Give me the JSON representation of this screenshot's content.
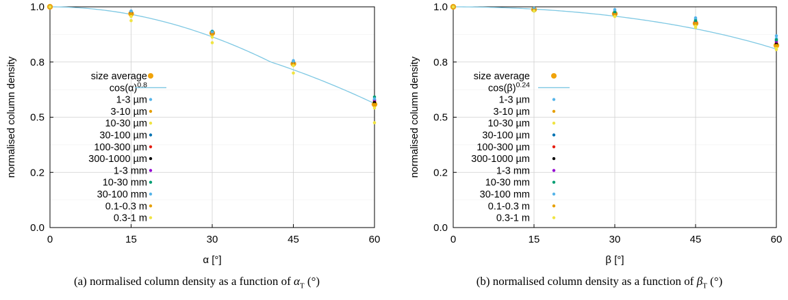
{
  "colors": {
    "fit_line": "#7ec8e3",
    "average_marker": "#f0a30a",
    "grid": "#cfcfcf",
    "axis": "#000000"
  },
  "chart_data": [
    {
      "type": "scatter",
      "xlabel": "α [°]",
      "ylabel": "normalised column density",
      "xlim": [
        0,
        60
      ],
      "ylim": [
        0,
        1
      ],
      "xticks": [
        0,
        15,
        30,
        45,
        60
      ],
      "yticks": [
        0.0,
        0.2,
        0.5,
        0.8,
        1.0
      ],
      "ytick_labels": [
        "0.0",
        "0.2",
        "0.5",
        "0.8",
        "1.0"
      ],
      "yscale": "cos-like (tick 0.5 drawn at 0.6 position)",
      "grid": true,
      "legend_position": "left-middle",
      "fit": {
        "label_base": "cos(α)",
        "label_exp": "0.8",
        "function": "cos",
        "exponent": 0.8,
        "color": "#7ec8e3"
      },
      "average": {
        "name": "size average",
        "color": "#f0a30a",
        "x": [
          0,
          15,
          30,
          45,
          60
        ],
        "y": [
          1.0,
          0.975,
          0.905,
          0.79,
          0.57
        ]
      },
      "series": [
        {
          "name": "1-3 µm",
          "color": "#56b4e9",
          "x": [
            0,
            15,
            30,
            45,
            60
          ],
          "y": [
            1.0,
            0.985,
            0.912,
            0.805,
            0.585
          ]
        },
        {
          "name": "3-10 µm",
          "color": "#e69f00",
          "x": [
            0,
            15,
            30,
            45,
            60
          ],
          "y": [
            1.0,
            0.975,
            0.905,
            0.79,
            0.57
          ]
        },
        {
          "name": "10-30 µm",
          "color": "#f0e442",
          "x": [
            0,
            15,
            30,
            45,
            60
          ],
          "y": [
            1.0,
            0.95,
            0.87,
            0.74,
            0.47
          ]
        },
        {
          "name": "30-100 µm",
          "color": "#0072b2",
          "x": [
            0,
            15,
            30,
            45,
            60
          ],
          "y": [
            1.0,
            0.983,
            0.91,
            0.8,
            0.59
          ]
        },
        {
          "name": "100-300 µm",
          "color": "#e51e10",
          "x": [
            0,
            15,
            30,
            45,
            60
          ],
          "y": [
            1.0,
            0.978,
            0.905,
            0.795,
            0.585
          ]
        },
        {
          "name": "300-1000 µm",
          "color": "#000000",
          "x": [
            0,
            15,
            30,
            45,
            60
          ],
          "y": [
            1.0,
            0.978,
            0.902,
            0.793,
            0.58
          ]
        },
        {
          "name": "1-3 mm",
          "color": "#9400d3",
          "x": [
            0,
            15,
            30,
            45,
            60
          ],
          "y": [
            1.0,
            0.98,
            0.905,
            0.798,
            0.595
          ]
        },
        {
          "name": "10-30 mm",
          "color": "#009e73",
          "x": [
            0,
            15,
            30,
            45,
            60
          ],
          "y": [
            1.0,
            0.982,
            0.91,
            0.8,
            0.61
          ]
        },
        {
          "name": "30-100 mm",
          "color": "#56b4e9",
          "x": [
            0,
            15,
            30,
            45,
            60
          ],
          "y": [
            1.0,
            0.983,
            0.908,
            0.802,
            0.6
          ]
        },
        {
          "name": "0.1-0.3 m",
          "color": "#e69f00",
          "x": [
            0,
            15,
            30,
            45,
            60
          ],
          "y": [
            1.0,
            0.975,
            0.9,
            0.79,
            0.57
          ]
        },
        {
          "name": "0.3-1 m",
          "color": "#f0e442",
          "x": [
            0,
            15,
            30,
            45,
            60
          ],
          "y": [
            1.0,
            0.965,
            0.89,
            0.78,
            0.55
          ]
        }
      ]
    },
    {
      "type": "scatter",
      "xlabel": "β  [°]",
      "ylabel": "normalised column density",
      "xlim": [
        0,
        60
      ],
      "ylim": [
        0,
        1
      ],
      "xticks": [
        0,
        15,
        30,
        45,
        60
      ],
      "yticks": [
        0.0,
        0.2,
        0.5,
        0.8,
        1.0
      ],
      "ytick_labels": [
        "0.0",
        "0.2",
        "0.5",
        "0.8",
        "1.0"
      ],
      "yscale": "cos-like (tick 0.5 drawn at 0.6 position)",
      "grid": true,
      "legend_position": "left-middle",
      "fit": {
        "label_base": "cos(β)",
        "label_exp": "0.24",
        "function": "cos",
        "exponent": 0.24,
        "color": "#7ec8e3"
      },
      "average": {
        "name": "size average",
        "color": "#f0a30a",
        "x": [
          0,
          15,
          30,
          45,
          60
        ],
        "y": [
          1.0,
          0.99,
          0.975,
          0.94,
          0.86
        ]
      },
      "series": [
        {
          "name": "1-3 µm",
          "color": "#56b4e9",
          "x": [
            0,
            15,
            30,
            45,
            60
          ],
          "y": [
            1.0,
            0.995,
            0.985,
            0.955,
            0.885
          ]
        },
        {
          "name": "3-10 µm",
          "color": "#e69f00",
          "x": [
            0,
            15,
            30,
            45,
            60
          ],
          "y": [
            1.0,
            0.99,
            0.975,
            0.94,
            0.86
          ]
        },
        {
          "name": "10-30 µm",
          "color": "#f0e442",
          "x": [
            0,
            15,
            30,
            45,
            60
          ],
          "y": [
            1.0,
            0.985,
            0.965,
            0.925,
            0.85
          ]
        },
        {
          "name": "30-100 µm",
          "color": "#0072b2",
          "x": [
            0,
            15,
            30,
            45,
            60
          ],
          "y": [
            1.0,
            0.992,
            0.98,
            0.95,
            0.88
          ]
        },
        {
          "name": "100-300 µm",
          "color": "#e51e10",
          "x": [
            0,
            15,
            30,
            45,
            60
          ],
          "y": [
            1.0,
            0.99,
            0.975,
            0.945,
            0.87
          ]
        },
        {
          "name": "300-1000 µm",
          "color": "#000000",
          "x": [
            0,
            15,
            30,
            45,
            60
          ],
          "y": [
            1.0,
            0.99,
            0.972,
            0.94,
            0.865
          ]
        },
        {
          "name": "1-3 mm",
          "color": "#9400d3",
          "x": [
            0,
            15,
            30,
            45,
            60
          ],
          "y": [
            1.0,
            0.992,
            0.978,
            0.945,
            0.875
          ]
        },
        {
          "name": "10-30 mm",
          "color": "#009e73",
          "x": [
            0,
            15,
            30,
            45,
            60
          ],
          "y": [
            1.0,
            0.985,
            0.98,
            0.95,
            0.88
          ]
        },
        {
          "name": "30-100 mm",
          "color": "#56b4e9",
          "x": [
            0,
            15,
            30,
            45,
            60
          ],
          "y": [
            1.0,
            0.993,
            0.99,
            0.96,
            0.895
          ]
        },
        {
          "name": "0.1-0.3 m",
          "color": "#e69f00",
          "x": [
            0,
            15,
            30,
            45,
            60
          ],
          "y": [
            1.0,
            0.988,
            0.972,
            0.94,
            0.86
          ]
        },
        {
          "name": "0.3-1 m",
          "color": "#f0e442",
          "x": [
            0,
            15,
            30,
            45,
            60
          ],
          "y": [
            1.0,
            0.985,
            0.965,
            0.93,
            0.845
          ]
        }
      ]
    }
  ],
  "captions": {
    "a": {
      "prefix": "(a) normalised column density as a function of ",
      "symbol": "α",
      "sub": "T",
      "suffix": " (°)"
    },
    "b": {
      "prefix": "(b) normalised column density as a function of ",
      "symbol": "β",
      "sub": "T",
      "suffix": " (°)"
    }
  }
}
